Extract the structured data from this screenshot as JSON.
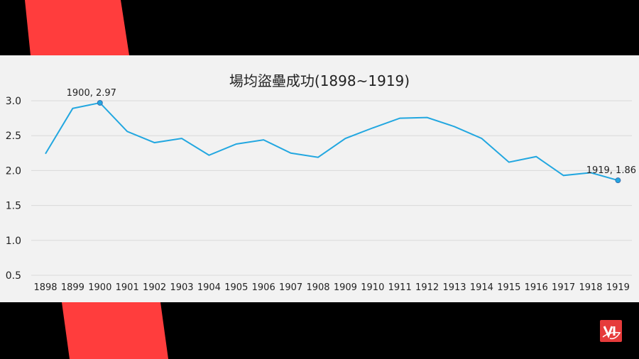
{
  "colors": {
    "background": "#000000",
    "stripe": "#ff3d3d",
    "panel": "#f2f2f2",
    "line": "#22a7e0",
    "grid": "#d9d9d9",
    "text": "#222222",
    "logo": "#e63b3b"
  },
  "logo_icon": "vi-logo-icon",
  "chart_data": {
    "type": "line",
    "title": "場均盜壘成功(1898~1919)",
    "xlabel": "",
    "ylabel": "",
    "ylim": [
      0.5,
      3.0
    ],
    "yticks": [
      "0.5",
      "1.0",
      "1.5",
      "2.0",
      "2.5",
      "3.0"
    ],
    "grid": true,
    "x": [
      "1898",
      "1899",
      "1900",
      "1901",
      "1902",
      "1903",
      "1904",
      "1905",
      "1906",
      "1907",
      "1908",
      "1909",
      "1910",
      "1911",
      "1912",
      "1913",
      "1914",
      "1915",
      "1916",
      "1917",
      "1918",
      "1919"
    ],
    "series": [
      {
        "values": [
          2.24,
          2.89,
          2.97,
          2.56,
          2.4,
          2.46,
          2.22,
          2.38,
          2.44,
          2.25,
          2.19,
          2.46,
          2.61,
          2.75,
          2.76,
          2.63,
          2.46,
          2.12,
          2.2,
          1.93,
          1.97,
          1.86
        ]
      }
    ],
    "annotations": [
      {
        "index": 2,
        "text": "1900, 2.97"
      },
      {
        "index": 21,
        "text": "1919, 1.86"
      }
    ]
  }
}
